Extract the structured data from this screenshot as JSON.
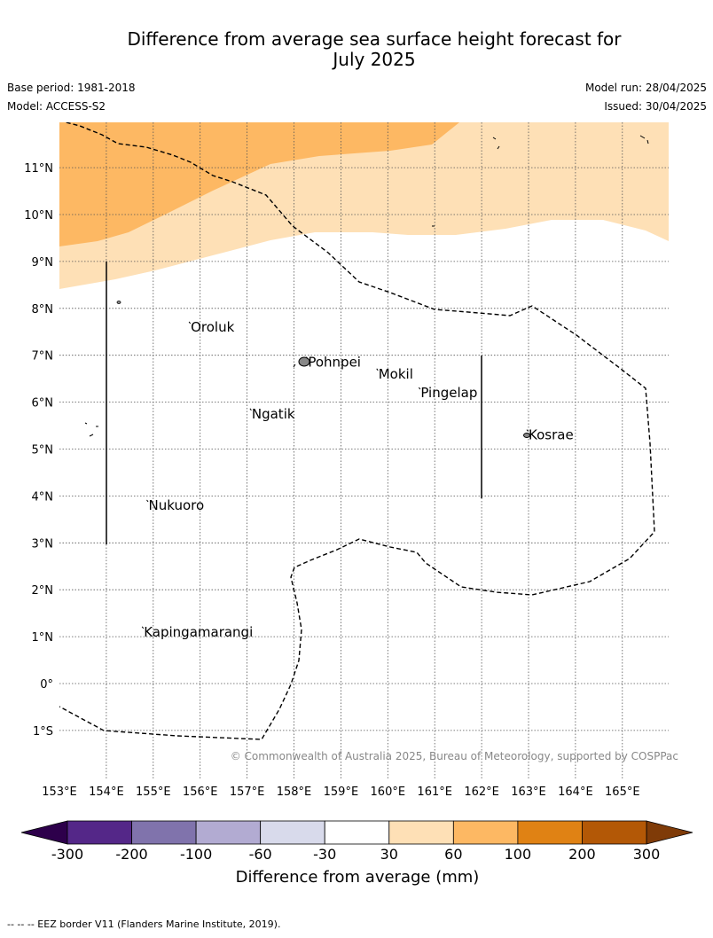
{
  "title_line1": "Difference from average sea surface height forecast for",
  "title_line2": "July 2025",
  "base_period": "Base period: 1981-2018",
  "model": "Model: ACCESS-S2",
  "model_run": "Model run: 28/04/2025",
  "issued": "Issued: 30/04/2025",
  "copyright": "© Commonwealth of Australia 2025, Bureau of Meteorology, supported by COSPPac",
  "footnote": "--  --  -- EEZ border V11 (Flanders Marine Institute, 2019).",
  "lat_labels": [
    "11°N",
    "10°N",
    "9°N",
    "8°N",
    "7°N",
    "6°N",
    "5°N",
    "4°N",
    "3°N",
    "2°N",
    "1°N",
    "0°",
    "1°S"
  ],
  "lon_labels": [
    "153°E",
    "154°E",
    "155°E",
    "156°E",
    "157°E",
    "158°E",
    "159°E",
    "160°E",
    "161°E",
    "162°E",
    "163°E",
    "164°E",
    "165°E"
  ],
  "places": [
    {
      "name": "Oroluk",
      "lon": 155.8,
      "lat": 7.6
    },
    {
      "name": "Pohnpei",
      "lon": 158.3,
      "lat": 6.85
    },
    {
      "name": "Mokil",
      "lon": 159.8,
      "lat": 6.6
    },
    {
      "name": "Pingelap",
      "lon": 160.7,
      "lat": 6.2
    },
    {
      "name": "Ngatik",
      "lon": 157.1,
      "lat": 5.75
    },
    {
      "name": "Kosrae",
      "lon": 163.0,
      "lat": 5.3
    },
    {
      "name": "Nukuoro",
      "lon": 154.9,
      "lat": 3.8
    },
    {
      "name": "Kapingamarangi",
      "lon": 154.8,
      "lat": 1.1
    }
  ],
  "colorbar": {
    "title": "Difference from average (mm)",
    "tick_labels": [
      "-300",
      "-200",
      "-100",
      "-60",
      "-30",
      "30",
      "60",
      "100",
      "200",
      "300"
    ],
    "colors": [
      "#542788",
      "#8073ac",
      "#b2abd2",
      "#d8daeb",
      "#ffffff",
      "#fee0b6",
      "#fdb863",
      "#e08214",
      "#b35806"
    ],
    "under_color": "#2d004b",
    "over_color": "#7f3b08"
  },
  "legend_colors": {
    "band_30_60": "#fee0b6",
    "band_60_100": "#fdb863"
  }
}
